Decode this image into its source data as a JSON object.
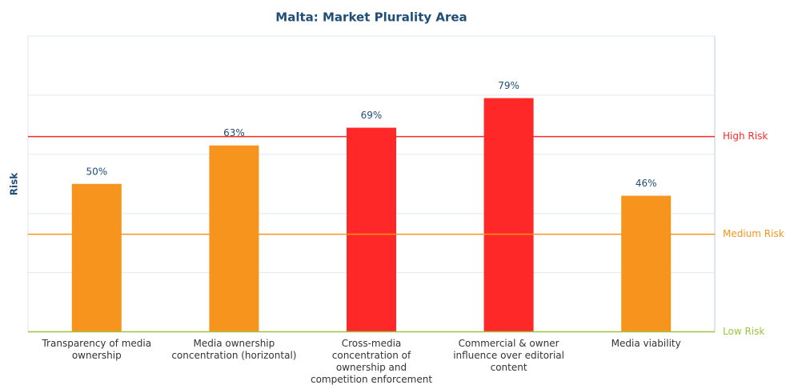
{
  "chart_data": {
    "type": "bar",
    "title": "Malta: Market Plurality Area",
    "y_label": "Risk",
    "categories": [
      "Transparency of media ownership",
      "Media ownership concentration (horizontal)",
      "Cross-media concentration of ownership and competition enforcement",
      "Commercial & owner influence over editorial content",
      "Media viability"
    ],
    "values": [
      50,
      63,
      69,
      79,
      46
    ],
    "value_labels": [
      "50%",
      "63%",
      "69%",
      "79%",
      "46%"
    ],
    "colors": [
      "#f7941d",
      "#f7941d",
      "#ff2828",
      "#ff2828",
      "#f7941d"
    ],
    "ylim": [
      0,
      100
    ],
    "yticks": [
      0,
      20,
      40,
      60,
      80,
      100
    ],
    "grid": true,
    "thresholds": [
      {
        "label": "High Risk",
        "value": 66,
        "color": "#ff2828"
      },
      {
        "label": "Medium Risk",
        "value": 33,
        "color": "#f7941d"
      },
      {
        "label": "Low Risk",
        "value": 0,
        "color": "#9cc43c"
      }
    ]
  }
}
